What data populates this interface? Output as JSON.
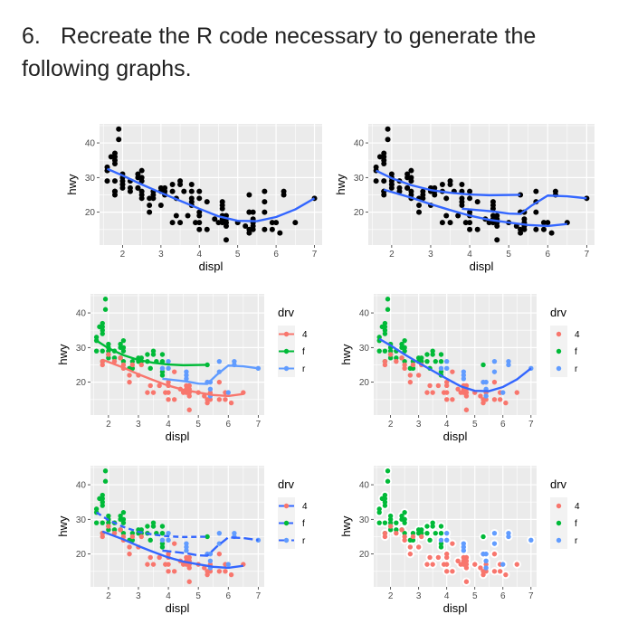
{
  "question": {
    "number": "6.",
    "text": "Recreate the R code necessary to generate the following graphs."
  },
  "colors": {
    "4": "#F8766D",
    "f": "#00BA38",
    "r": "#619CFF",
    "smooth": "#3366FF",
    "panel": "#EBEBEB",
    "black": "#000000"
  },
  "axes": {
    "xlabel": "displ",
    "ylabel": "hwy",
    "xticks": [
      "2",
      "3",
      "4",
      "5",
      "6",
      "7"
    ],
    "yticks": [
      "20",
      "30",
      "40"
    ],
    "legend_title": "drv",
    "legend_keys": [
      "4",
      "f",
      "r"
    ]
  },
  "chart_data": {
    "type": "scatter",
    "xlabel": "displ",
    "ylabel": "hwy",
    "xlim": [
      1.4,
      7.2
    ],
    "ylim": [
      10.5,
      45.5
    ],
    "points": [
      [
        1.8,
        29,
        "f"
      ],
      [
        2,
        31,
        "f"
      ],
      [
        2,
        30,
        "f"
      ],
      [
        2.8,
        26,
        "f"
      ],
      [
        3.1,
        27,
        "f"
      ],
      [
        1.8,
        26,
        "f"
      ],
      [
        2,
        28,
        "f"
      ],
      [
        2.4,
        27,
        "f"
      ],
      [
        2.4,
        30,
        "f"
      ],
      [
        3.1,
        26,
        "f"
      ],
      [
        3.5,
        29,
        "f"
      ],
      [
        3.6,
        26,
        "f"
      ],
      [
        3.8,
        26,
        "f"
      ],
      [
        3.8,
        28,
        "f"
      ],
      [
        3.4,
        24,
        "f"
      ],
      [
        3.8,
        23,
        "f"
      ],
      [
        2.5,
        30,
        "f"
      ],
      [
        2.5,
        32,
        "f"
      ],
      [
        1.6,
        33,
        "f"
      ],
      [
        1.6,
        32,
        "f"
      ],
      [
        1.6,
        29,
        "f"
      ],
      [
        1.7,
        36,
        "f"
      ],
      [
        1.8,
        36,
        "f"
      ],
      [
        1.8,
        37,
        "f"
      ],
      [
        1.8,
        34,
        "f"
      ],
      [
        1.9,
        44,
        "f"
      ],
      [
        1.9,
        41,
        "f"
      ],
      [
        2.2,
        29,
        "f"
      ],
      [
        2.4,
        31,
        "f"
      ],
      [
        3,
        27,
        "f"
      ],
      [
        3.3,
        26,
        "f"
      ],
      [
        2,
        29,
        "f"
      ],
      [
        2.5,
        29,
        "f"
      ],
      [
        2.7,
        24,
        "f"
      ],
      [
        3.5,
        28,
        "f"
      ],
      [
        1.8,
        35,
        "f"
      ],
      [
        2.5,
        26,
        "f"
      ],
      [
        2.8,
        24,
        "f"
      ],
      [
        5.3,
        25,
        "f"
      ],
      [
        3,
        26,
        "f"
      ],
      [
        3.8,
        22,
        "f"
      ],
      [
        2,
        27,
        "f"
      ],
      [
        2.2,
        27,
        "f"
      ],
      [
        3.3,
        28,
        "f"
      ],
      [
        1.8,
        26,
        "4"
      ],
      [
        1.8,
        25,
        "4"
      ],
      [
        2,
        28,
        "4"
      ],
      [
        2.8,
        25,
        "4"
      ],
      [
        3.1,
        25,
        "4"
      ],
      [
        4.2,
        23,
        "4"
      ],
      [
        5.3,
        20,
        "4"
      ],
      [
        5.3,
        15,
        "4"
      ],
      [
        5.7,
        20,
        "4"
      ],
      [
        6.5,
        17,
        "4"
      ],
      [
        4.7,
        17,
        "4"
      ],
      [
        4.7,
        12,
        "4"
      ],
      [
        5.2,
        16,
        "4"
      ],
      [
        5.9,
        17,
        "4"
      ],
      [
        4,
        17,
        "4"
      ],
      [
        4.6,
        17,
        "4"
      ],
      [
        5.4,
        17,
        "4"
      ],
      [
        4.7,
        19,
        "4"
      ],
      [
        3.7,
        19,
        "4"
      ],
      [
        3.9,
        17,
        "4"
      ],
      [
        4.5,
        17,
        "4"
      ],
      [
        2.7,
        20,
        "4"
      ],
      [
        2.7,
        22,
        "4"
      ],
      [
        3.4,
        19,
        "4"
      ],
      [
        4,
        20,
        "4"
      ],
      [
        4,
        19,
        "4"
      ],
      [
        4.6,
        19,
        "4"
      ],
      [
        5.4,
        15,
        "4"
      ],
      [
        3.3,
        17,
        "4"
      ],
      [
        4,
        15,
        "4"
      ],
      [
        4.7,
        16,
        "4"
      ],
      [
        5.7,
        15,
        "4"
      ],
      [
        6.1,
        14,
        "4"
      ],
      [
        2.5,
        25,
        "4"
      ],
      [
        2.5,
        24,
        "4"
      ],
      [
        2.2,
        26,
        "4"
      ],
      [
        4.6,
        18,
        "4"
      ],
      [
        5,
        17,
        "4"
      ],
      [
        4.2,
        15,
        "4"
      ],
      [
        3.5,
        17,
        "4"
      ],
      [
        2.4,
        27,
        "4"
      ],
      [
        3,
        22,
        "4"
      ],
      [
        4.7,
        18,
        "4"
      ],
      [
        5.3,
        14,
        "4"
      ],
      [
        5.9,
        15,
        "4"
      ],
      [
        4.4,
        18,
        "4"
      ],
      [
        5.3,
        20,
        "r"
      ],
      [
        5.7,
        26,
        "r"
      ],
      [
        6.2,
        26,
        "r"
      ],
      [
        6.2,
        25,
        "r"
      ],
      [
        7,
        24,
        "r"
      ],
      [
        5.7,
        23,
        "r"
      ],
      [
        4,
        24,
        "r"
      ],
      [
        4,
        26,
        "r"
      ],
      [
        4.6,
        23,
        "r"
      ],
      [
        5.4,
        20,
        "r"
      ],
      [
        4.6,
        22,
        "r"
      ],
      [
        5.4,
        18,
        "r"
      ],
      [
        5.4,
        16,
        "r"
      ],
      [
        6,
        17,
        "r"
      ],
      [
        3.8,
        24,
        "r"
      ],
      [
        4.6,
        21,
        "r"
      ]
    ],
    "smooth_all": [
      [
        1.6,
        32.5
      ],
      [
        2,
        30.6
      ],
      [
        2.5,
        28
      ],
      [
        3,
        25.6
      ],
      [
        3.5,
        23.3
      ],
      [
        4,
        21
      ],
      [
        4.5,
        18.8
      ],
      [
        5,
        17.5
      ],
      [
        5.5,
        17.4
      ],
      [
        6,
        18.6
      ],
      [
        6.5,
        20.8
      ],
      [
        7,
        24
      ]
    ],
    "smooth_by_drv": {
      "4": [
        [
          1.8,
          26.5
        ],
        [
          2.5,
          24.2
        ],
        [
          3,
          22.3
        ],
        [
          3.5,
          20.6
        ],
        [
          4,
          19
        ],
        [
          4.5,
          17.8
        ],
        [
          5,
          17
        ],
        [
          5.5,
          16.3
        ],
        [
          6,
          16
        ],
        [
          6.5,
          16.6
        ]
      ],
      "f": [
        [
          1.6,
          32
        ],
        [
          2,
          29.8
        ],
        [
          2.5,
          27.8
        ],
        [
          3,
          26.4
        ],
        [
          3.5,
          25.6
        ],
        [
          4,
          25.1
        ],
        [
          4.5,
          24.9
        ],
        [
          5.3,
          25
        ]
      ],
      "r": [
        [
          3.8,
          21
        ],
        [
          4.2,
          20.6
        ],
        [
          4.6,
          20.2
        ],
        [
          5,
          19.6
        ],
        [
          5.3,
          19.5
        ],
        [
          5.6,
          22
        ],
        [
          6,
          24.8
        ],
        [
          6.5,
          24.6
        ],
        [
          7,
          24
        ]
      ]
    }
  }
}
